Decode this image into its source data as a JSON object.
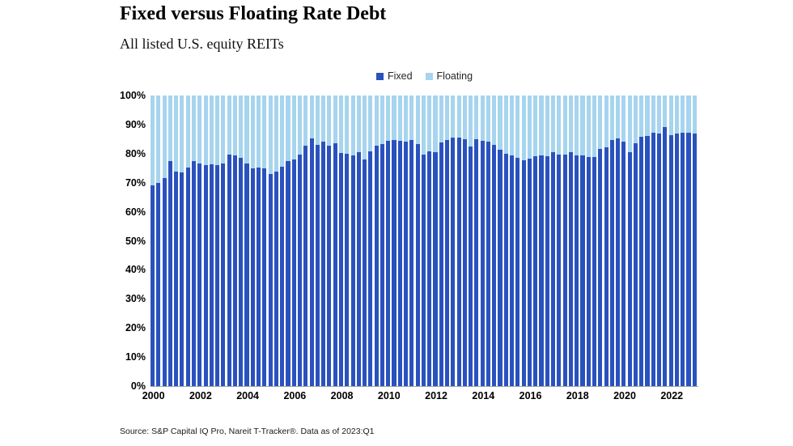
{
  "header": {
    "title": "Fixed versus Floating Rate Debt",
    "subtitle": "All listed U.S. equity REITs"
  },
  "legend": {
    "items": [
      {
        "label": "Fixed",
        "color": "#2a52be"
      },
      {
        "label": "Floating",
        "color": "#a7d4ee"
      }
    ]
  },
  "footer": {
    "source": "Source: S&P Capital IQ Pro, Nareit T-Tracker®. Data as of 2023:Q1"
  },
  "chart_data": {
    "type": "bar",
    "variant": "stacked-100-percent-column",
    "title": "Fixed versus Floating Rate Debt",
    "subtitle": "All listed U.S. equity REITs",
    "frequency": "quarterly",
    "period_start": "2000:Q1",
    "period_end": "2023:Q1",
    "n_bars": 93,
    "xlabel": "",
    "ylabel": "",
    "ylim": [
      0,
      100
    ],
    "grid": false,
    "legend_position": "top-center",
    "y_tick_labels": [
      "0%",
      "10%",
      "20%",
      "30%",
      "40%",
      "50%",
      "60%",
      "70%",
      "80%",
      "90%",
      "100%"
    ],
    "y_tick_values": [
      0,
      10,
      20,
      30,
      40,
      50,
      60,
      70,
      80,
      90,
      100
    ],
    "x_tick_labels": [
      "2000",
      "2002",
      "2004",
      "2006",
      "2008",
      "2010",
      "2012",
      "2014",
      "2016",
      "2018",
      "2020",
      "2022"
    ],
    "x_tick_bar_indices": [
      0,
      8,
      16,
      24,
      32,
      40,
      48,
      56,
      64,
      72,
      80,
      88
    ],
    "series": [
      {
        "name": "Fixed",
        "color": "#2a52be",
        "unit": "%",
        "values": [
          69.1,
          70.0,
          71.6,
          77.4,
          73.9,
          73.4,
          75.3,
          77.3,
          76.7,
          76.0,
          76.4,
          76.0,
          76.5,
          79.7,
          79.3,
          78.6,
          76.7,
          75.0,
          75.3,
          75.0,
          73.0,
          73.9,
          75.6,
          77.4,
          78.0,
          79.6,
          82.6,
          85.1,
          82.9,
          84.0,
          82.6,
          83.5,
          80.2,
          79.9,
          79.5,
          80.6,
          78.1,
          80.9,
          82.7,
          83.4,
          84.3,
          84.6,
          84.5,
          84.2,
          84.6,
          83.2,
          79.7,
          80.9,
          80.4,
          83.9,
          84.6,
          85.5,
          85.4,
          84.9,
          82.4,
          85.0,
          84.4,
          84.0,
          83.0,
          81.2,
          79.9,
          79.3,
          78.5,
          77.8,
          78.4,
          79.0,
          79.3,
          79.0,
          80.4,
          79.7,
          79.7,
          80.6,
          79.3,
          79.5,
          78.7,
          78.7,
          81.6,
          82.3,
          84.6,
          85.1,
          84.1,
          80.6,
          83.7,
          85.7,
          86.0,
          87.2,
          86.9,
          89.2,
          86.4,
          86.9,
          87.1,
          87.1,
          86.9
        ]
      },
      {
        "name": "Floating",
        "color": "#a7d4ee",
        "unit": "%",
        "values": [
          30.9,
          30.0,
          28.4,
          22.6,
          26.1,
          26.6,
          24.7,
          22.7,
          23.3,
          24.0,
          23.6,
          24.0,
          23.5,
          20.3,
          20.7,
          21.4,
          23.3,
          25.0,
          24.7,
          25.0,
          27.0,
          26.1,
          24.4,
          22.6,
          22.0,
          20.4,
          17.4,
          14.9,
          17.1,
          16.0,
          17.4,
          16.5,
          19.8,
          20.1,
          20.5,
          19.4,
          21.9,
          19.1,
          17.3,
          16.6,
          15.7,
          15.4,
          15.5,
          15.8,
          15.4,
          16.8,
          20.3,
          19.1,
          19.6,
          16.1,
          15.4,
          14.5,
          14.6,
          15.1,
          17.6,
          15.0,
          15.6,
          16.0,
          17.0,
          18.8,
          20.1,
          20.7,
          21.5,
          22.2,
          21.6,
          21.0,
          20.7,
          21.0,
          19.6,
          20.3,
          20.3,
          19.4,
          20.7,
          20.5,
          21.3,
          21.3,
          18.4,
          17.7,
          15.4,
          14.9,
          15.9,
          19.4,
          16.3,
          14.3,
          14.0,
          12.8,
          13.1,
          10.8,
          13.6,
          13.1,
          12.9,
          12.9,
          13.1
        ]
      }
    ]
  }
}
